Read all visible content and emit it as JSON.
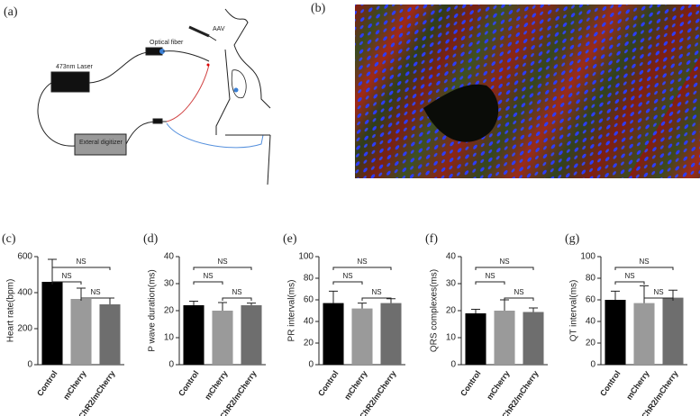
{
  "panels": {
    "a": "(a)",
    "b": "(b)",
    "laser": "473nm Laser",
    "fiber": "Optical fiber",
    "aav": "AAV",
    "digitizer": "Exteral  digitizer"
  },
  "chart_data": [
    {
      "type": "bar",
      "panel": "(c)",
      "ylabel": "Heart rate(bpm)",
      "categories": [
        "Control",
        "mCherry",
        "ChR2/mCherry"
      ],
      "values": [
        460,
        365,
        335
      ],
      "errors": [
        125,
        60,
        35
      ],
      "colors": [
        "#000000",
        "#9a9a9a",
        "#6e6e6e"
      ],
      "ylim": [
        0,
        600
      ],
      "yticks": [
        0,
        200,
        400,
        600
      ],
      "annotations": [
        "NS",
        "NS",
        "NS"
      ]
    },
    {
      "type": "bar",
      "panel": "(d)",
      "ylabel": "P wave duration(ms)",
      "categories": [
        "Control",
        "mCherry",
        "ChR2/mCherry"
      ],
      "values": [
        22,
        20,
        22
      ],
      "errors": [
        1.5,
        3,
        0.8
      ],
      "colors": [
        "#000000",
        "#9a9a9a",
        "#6e6e6e"
      ],
      "ylim": [
        0,
        40
      ],
      "yticks": [
        0,
        10,
        20,
        30,
        40
      ],
      "annotations": [
        "NS",
        "NS",
        "NS"
      ]
    },
    {
      "type": "bar",
      "panel": "(e)",
      "ylabel": "PR interval(ms)",
      "categories": [
        "Control",
        "mCherry",
        "ChR2/mCherry"
      ],
      "values": [
        57,
        52,
        57
      ],
      "errors": [
        11,
        5,
        4
      ],
      "colors": [
        "#000000",
        "#9a9a9a",
        "#6e6e6e"
      ],
      "ylim": [
        0,
        100
      ],
      "yticks": [
        0,
        20,
        40,
        60,
        80,
        100
      ],
      "annotations": [
        "NS",
        "NS",
        "NS"
      ]
    },
    {
      "type": "bar",
      "panel": "(f)",
      "ylabel": "QRS complexes(ms)",
      "categories": [
        "Control",
        "mCherry",
        "ChR2/mCherry"
      ],
      "values": [
        19,
        20,
        19.5
      ],
      "errors": [
        1.5,
        4,
        1.5
      ],
      "colors": [
        "#000000",
        "#9a9a9a",
        "#6e6e6e"
      ],
      "ylim": [
        0,
        40
      ],
      "yticks": [
        0,
        10,
        20,
        30,
        40
      ],
      "annotations": [
        "NS",
        "NS",
        "NS"
      ]
    },
    {
      "type": "bar",
      "panel": "(g)",
      "ylabel": "QT interval(ms)",
      "categories": [
        "Control",
        "mCherry",
        "ChR2/mCherry"
      ],
      "values": [
        60,
        57,
        62
      ],
      "errors": [
        8,
        16,
        7
      ],
      "colors": [
        "#000000",
        "#9a9a9a",
        "#6e6e6e"
      ],
      "ylim": [
        0,
        100
      ],
      "yticks": [
        0,
        20,
        40,
        60,
        80,
        100
      ],
      "annotations": [
        "NS",
        "NS",
        "NS"
      ]
    }
  ]
}
